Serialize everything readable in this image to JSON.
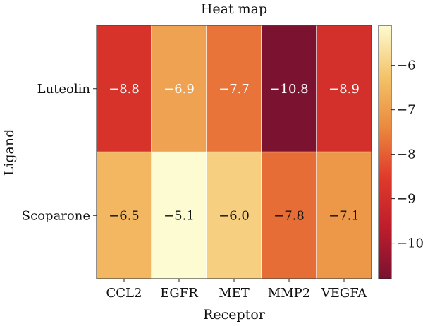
{
  "chart_data": {
    "type": "heatmap",
    "title": "Heat map",
    "xlabel": "Receptor",
    "ylabel": "Ligand",
    "x_categories": [
      "CCL2",
      "EGFR",
      "MET",
      "MMP2",
      "VEGFA"
    ],
    "y_categories": [
      "Luteolin",
      "Scoparone"
    ],
    "values": [
      [
        -8.8,
        -6.9,
        -7.7,
        -10.8,
        -8.9
      ],
      [
        -6.5,
        -5.1,
        -6.0,
        -7.8,
        -7.1
      ]
    ],
    "value_labels": [
      [
        "−8.8",
        "−6.9",
        "−7.7",
        "−10.8",
        "−8.9"
      ],
      [
        "−6.5",
        "−5.1",
        "−6.0",
        "−7.8",
        "−7.1"
      ]
    ],
    "colorbar": {
      "range": [
        -10.8,
        -5.1
      ],
      "ticks": [
        -10,
        -9,
        -8,
        -7,
        -6
      ],
      "tick_labels": [
        "−10",
        "−9",
        "−8",
        "−7",
        "−6"
      ],
      "colormap": "YlOrRd (reversed)",
      "colors": [
        "#7a1230",
        "#bd1d2c",
        "#e03a2b",
        "#eb8a3e",
        "#f4c46a",
        "#fdfbd2"
      ]
    },
    "grid": false
  }
}
